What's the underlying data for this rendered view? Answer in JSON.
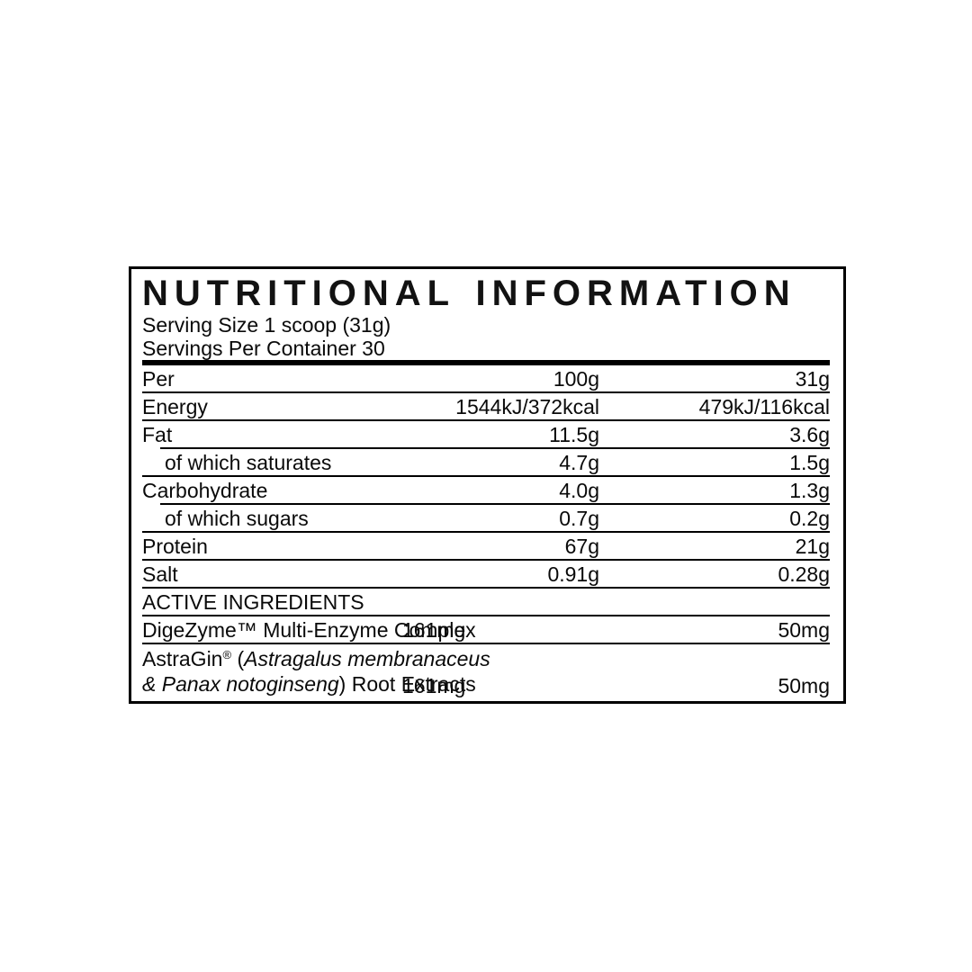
{
  "panel": {
    "title": "NUTRITIONAL INFORMATION",
    "serving_size": "Serving Size 1 scoop (31g)",
    "servings_per_container": "Servings Per Container 30"
  },
  "table": {
    "header": {
      "label": "Per",
      "per_100g": "100g",
      "per_serving": "31g"
    },
    "rows": [
      {
        "label": "Energy",
        "per_100g": "1544kJ/372kcal",
        "per_serving": "479kJ/116kcal"
      },
      {
        "label": "Fat",
        "per_100g": "11.5g",
        "per_serving": "3.6g"
      },
      {
        "label": "of which saturates",
        "per_100g": "4.7g",
        "per_serving": "1.5g"
      },
      {
        "label": "Carbohydrate",
        "per_100g": "4.0g",
        "per_serving": "1.3g"
      },
      {
        "label": "of which sugars",
        "per_100g": "0.7g",
        "per_serving": "0.2g"
      },
      {
        "label": "Protein",
        "per_100g": "67g",
        "per_serving": "21g"
      },
      {
        "label": "Salt",
        "per_100g": "0.91g",
        "per_serving": "0.28g"
      }
    ],
    "section_header": "ACTIVE INGREDIENTS",
    "active_rows": [
      {
        "label": "DigeZyme™ Multi-Enzyme Complex",
        "per_100g": "161mg",
        "per_serving": "50mg"
      },
      {
        "brand": "AstraGin",
        "registered_mark": "®",
        "open_paren": " (",
        "species_line1": "Astragalus membranaceus",
        "species_line2": "& Panax notoginseng",
        "suffix": ") Root Extracts",
        "per_100g": "161mg",
        "per_serving": "50mg"
      }
    ]
  },
  "colors": {
    "text": "#0a0a0a",
    "rule": "#000000",
    "background": "#ffffff"
  }
}
